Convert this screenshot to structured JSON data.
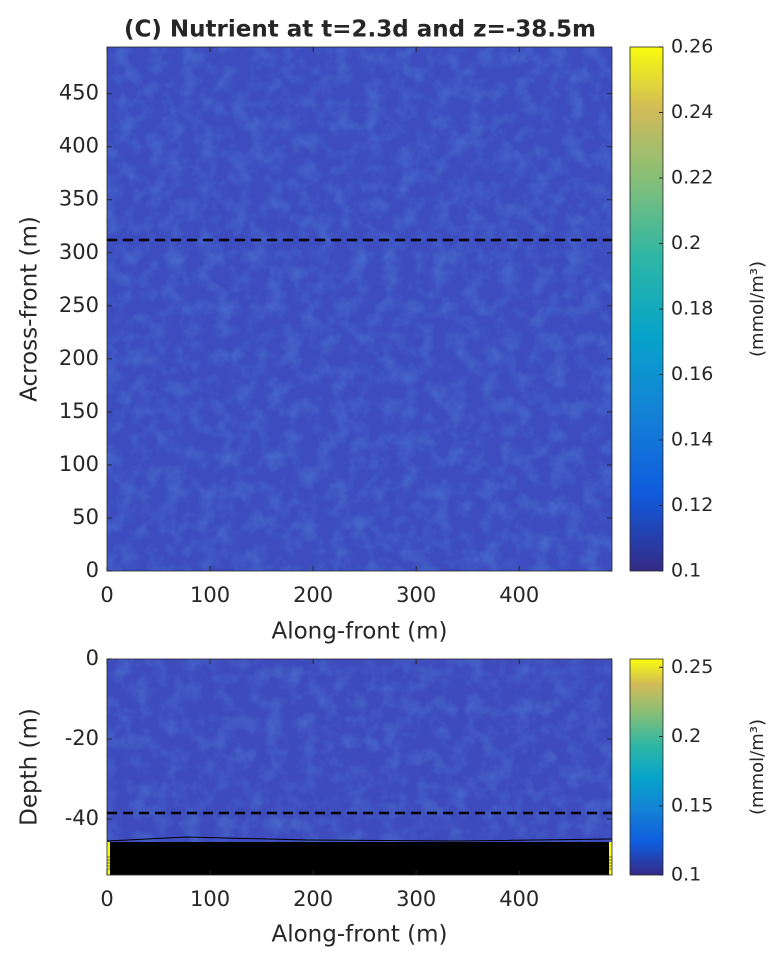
{
  "chart_data": [
    {
      "type": "heatmap",
      "title": "(C) Nutrient at t=2.3d and z=-38.5m",
      "xlabel": "Along-front (m)",
      "ylabel": "Across-front (m)",
      "xlim": [
        0,
        490
      ],
      "ylim": [
        0,
        494
      ],
      "xticks": [
        0,
        100,
        200,
        300,
        400
      ],
      "yticks": [
        0,
        50,
        100,
        150,
        200,
        250,
        300,
        350,
        400,
        450
      ],
      "colorbar": {
        "label": "(mmol/m³)",
        "clim": [
          0.1,
          0.26
        ],
        "ticks": [
          0.1,
          0.12,
          0.14,
          0.16,
          0.18,
          0.2,
          0.22,
          0.24,
          0.26
        ]
      },
      "dashed_line": 312,
      "color": "#3d4dbf"
    },
    {
      "type": "heatmap",
      "xlabel": "Along-front (m)",
      "ylabel": "Depth (m)",
      "xlim": [
        0,
        490
      ],
      "ylim": [
        -54,
        0
      ],
      "xticks": [
        0,
        100,
        200,
        300,
        400
      ],
      "yticks": [
        -40,
        -20,
        0
      ],
      "colorbar": {
        "label": "(mmol/m³)",
        "clim": [
          0.1,
          0.256
        ],
        "ticks": [
          0.1,
          0.15,
          0.2,
          0.25
        ]
      },
      "dashed_line": -38.5,
      "color": "#3e4bbd"
    }
  ]
}
